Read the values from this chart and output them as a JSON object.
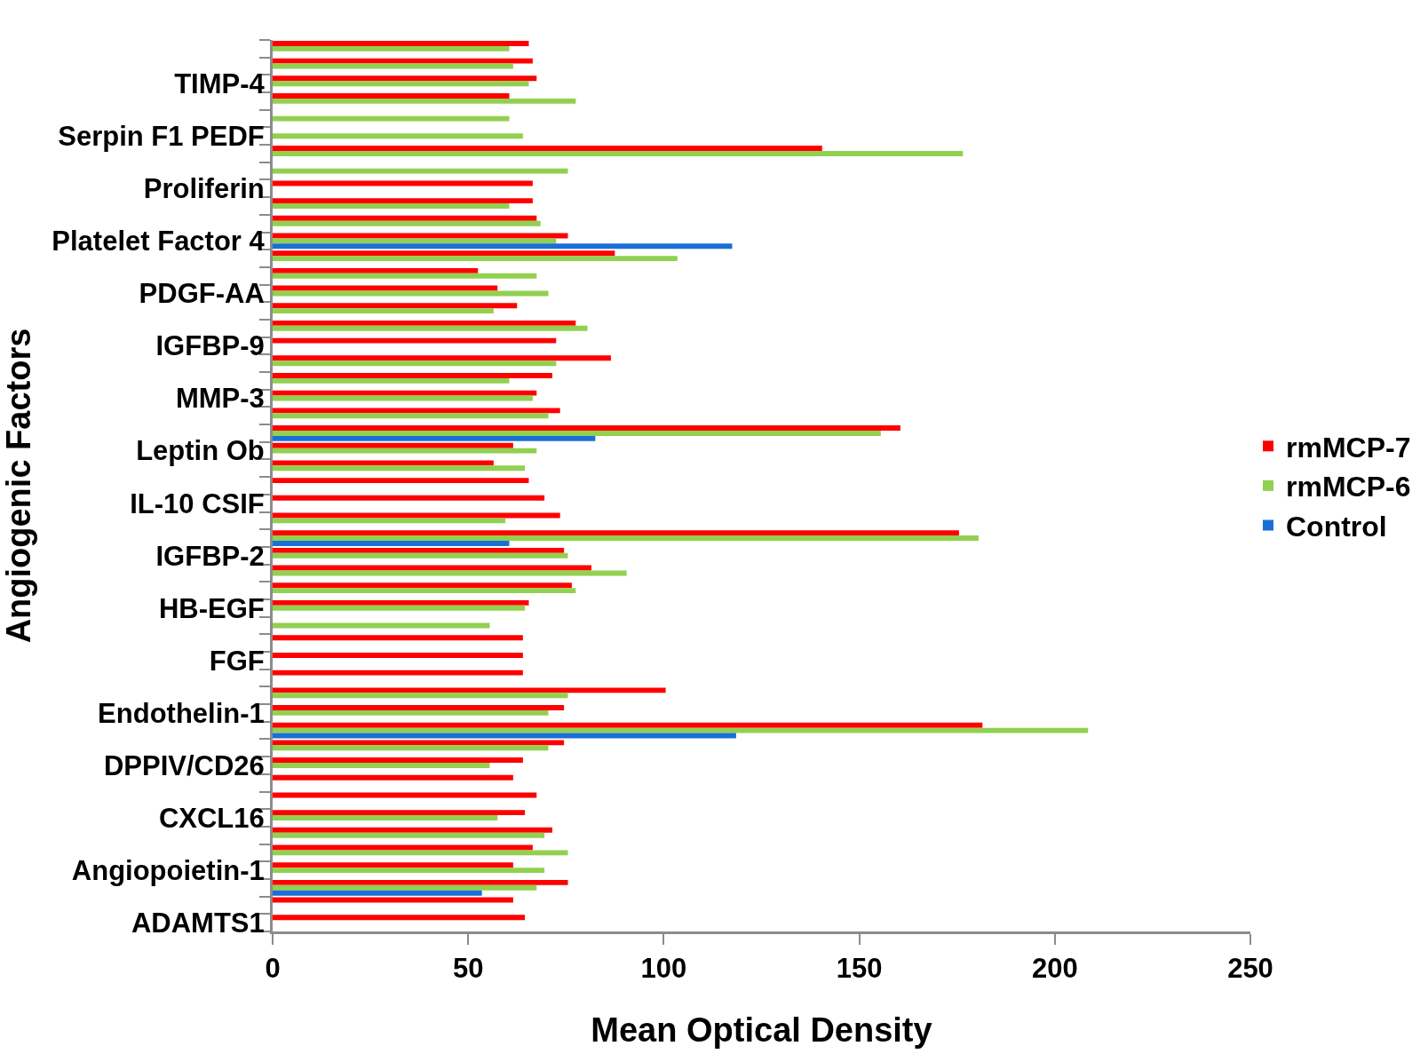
{
  "chart_data": {
    "type": "bar",
    "orientation": "horizontal",
    "xlabel": "Mean Optical Density",
    "ylabel": "Angiogenic Factors",
    "categories": [
      null,
      null,
      "TIMP-4",
      null,
      null,
      "Serpin F1 PEDF",
      null,
      null,
      "Proliferin",
      null,
      null,
      "Platelet Factor 4",
      null,
      null,
      "PDGF-AA",
      null,
      null,
      "IGFBP-9",
      null,
      null,
      "MMP-3",
      null,
      null,
      "Leptin Ob",
      null,
      null,
      "IL-10 CSIF",
      null,
      null,
      "IGFBP-2",
      null,
      null,
      "HB-EGF",
      null,
      null,
      "FGF",
      null,
      null,
      "Endothelin-1",
      null,
      null,
      "DPPIV/CD26",
      null,
      null,
      "CXCL16",
      null,
      null,
      "Angiopoietin-1",
      null,
      null,
      "ADAMTS1"
    ],
    "series": [
      {
        "name": "rmMCP-7",
        "color": "#ff0000",
        "values": [
          65.5,
          66.5,
          67.5,
          60.5,
          null,
          null,
          140.5,
          null,
          66.5,
          66.5,
          67.5,
          75.5,
          87.5,
          52.5,
          57.5,
          62.5,
          77.5,
          72.5,
          86.5,
          71.5,
          67.5,
          73.5,
          160.5,
          61.5,
          56.5,
          65.5,
          69.5,
          73.5,
          175.5,
          74.5,
          81.5,
          76.5,
          65.5,
          null,
          64,
          64,
          64,
          100.5,
          74.5,
          181.5,
          74.5,
          64,
          61.5,
          67.5,
          64.5,
          71.5,
          66.5,
          61.5,
          75.5,
          61.5,
          64.5
        ]
      },
      {
        "name": "rmMCP-6",
        "color": "#92d050",
        "values": [
          60.5,
          61.5,
          65.5,
          77.5,
          60.5,
          64,
          176.5,
          75.5,
          null,
          60.5,
          68.5,
          72.5,
          103.5,
          67.5,
          70.5,
          56.5,
          80.5,
          null,
          72.5,
          60.5,
          66.5,
          70.5,
          155.5,
          67.5,
          64.5,
          null,
          null,
          59.5,
          180.5,
          75.5,
          90.5,
          77.5,
          64.5,
          55.5,
          null,
          null,
          null,
          75.5,
          70.5,
          208.5,
          70.5,
          55.5,
          null,
          null,
          57.5,
          69.5,
          75.5,
          69.5,
          67.5,
          null,
          null
        ]
      },
      {
        "name": "Control",
        "color": "#1a6fd6",
        "values": [
          null,
          null,
          null,
          null,
          null,
          null,
          null,
          null,
          null,
          null,
          null,
          117.5,
          null,
          null,
          null,
          null,
          null,
          null,
          null,
          null,
          null,
          null,
          82.5,
          null,
          null,
          null,
          null,
          null,
          60.5,
          null,
          null,
          null,
          null,
          null,
          null,
          null,
          null,
          null,
          null,
          118.5,
          null,
          null,
          null,
          null,
          null,
          null,
          null,
          null,
          53.5,
          null,
          null
        ]
      }
    ],
    "xlim": [
      0,
      250
    ],
    "xticks": [
      0,
      50,
      100,
      150,
      200,
      250
    ],
    "grid": false,
    "legend": "right"
  }
}
